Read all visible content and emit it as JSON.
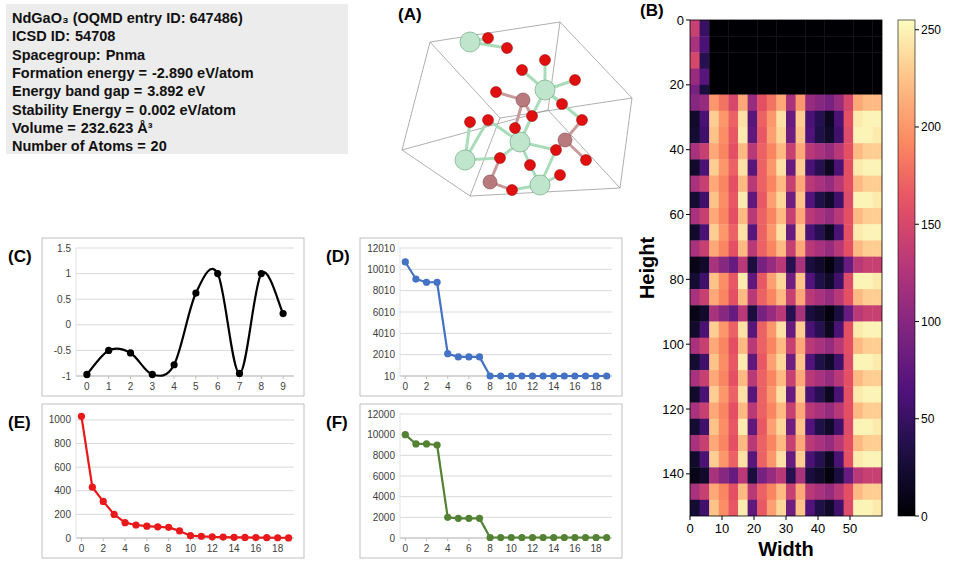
{
  "info": {
    "title": "NdGaO₃ (OQMD entry ID: 647486)",
    "rows": [
      {
        "label": "ICSD ID:",
        "value": "54708"
      },
      {
        "label": "Spacegroup:",
        "value": "Pnma"
      },
      {
        "label": "Formation energy =",
        "value": "-2.890 eV/atom"
      },
      {
        "label": "Energy band gap =",
        "value": "3.892 eV"
      },
      {
        "label": "Stability Energy =",
        "value": "0.002 eV/atom"
      },
      {
        "label": "Volume =",
        "value": "232.623 Å³"
      },
      {
        "label": "Number of Atoms =",
        "value": "20"
      }
    ]
  },
  "structure": {
    "panel_label": "(A)"
  },
  "chart_data": [
    {
      "type": "heatmap",
      "panel_label": "(B)",
      "x_label": "Width",
      "y_label": "Height",
      "xlim": [
        0,
        60
      ],
      "ylim": [
        0,
        153
      ],
      "xticks": [
        0,
        10,
        20,
        30,
        40,
        50
      ],
      "yticks": [
        0,
        20,
        40,
        60,
        80,
        100,
        120,
        140
      ],
      "x_edges": [
        0,
        3,
        6,
        9,
        12,
        15,
        18,
        21,
        24,
        27,
        30,
        33,
        36,
        39,
        42,
        45,
        48,
        51,
        54,
        57,
        60
      ],
      "y_edges": [
        0,
        5,
        10,
        15,
        20,
        23,
        28,
        33,
        38,
        43,
        48,
        53,
        58,
        63,
        68,
        73,
        78,
        83,
        88,
        93,
        98,
        103,
        108,
        113,
        118,
        123,
        128,
        133,
        138,
        143,
        148,
        153
      ],
      "cells": [
        [
          140,
          50,
          0,
          0,
          0,
          0,
          0,
          0,
          0,
          0,
          0,
          0,
          0,
          0,
          0,
          0,
          0,
          0,
          0,
          0
        ],
        [
          120,
          60,
          0,
          0,
          0,
          0,
          0,
          0,
          0,
          0,
          0,
          0,
          0,
          0,
          0,
          0,
          0,
          0,
          0,
          0
        ],
        [
          150,
          40,
          0,
          0,
          0,
          0,
          0,
          0,
          0,
          0,
          0,
          0,
          0,
          0,
          0,
          0,
          0,
          0,
          0,
          0
        ],
        [
          110,
          70,
          0,
          0,
          0,
          0,
          0,
          0,
          0,
          0,
          0,
          0,
          0,
          0,
          0,
          0,
          0,
          0,
          0,
          0
        ],
        [
          90,
          30,
          0,
          0,
          0,
          0,
          0,
          0,
          0,
          0,
          0,
          0,
          0,
          0,
          0,
          0,
          0,
          0,
          0,
          0
        ],
        [
          100,
          110,
          200,
          180,
          150,
          210,
          110,
          160,
          180,
          210,
          120,
          200,
          110,
          100,
          90,
          110,
          150,
          210,
          220,
          220
        ],
        [
          20,
          60,
          230,
          200,
          170,
          240,
          70,
          170,
          200,
          240,
          80,
          230,
          60,
          40,
          15,
          60,
          160,
          245,
          250,
          250
        ],
        [
          25,
          55,
          225,
          195,
          165,
          245,
          75,
          165,
          205,
          235,
          85,
          225,
          65,
          35,
          20,
          55,
          155,
          250,
          250,
          245
        ],
        [
          120,
          140,
          210,
          190,
          160,
          220,
          130,
          170,
          190,
          220,
          140,
          210,
          130,
          120,
          110,
          130,
          160,
          220,
          230,
          230
        ],
        [
          20,
          60,
          230,
          200,
          170,
          240,
          70,
          170,
          200,
          240,
          80,
          230,
          60,
          40,
          15,
          60,
          160,
          245,
          250,
          250
        ],
        [
          120,
          140,
          210,
          190,
          160,
          220,
          130,
          170,
          190,
          220,
          140,
          210,
          130,
          120,
          110,
          130,
          160,
          220,
          230,
          230
        ],
        [
          25,
          55,
          225,
          195,
          165,
          245,
          75,
          165,
          205,
          235,
          85,
          225,
          65,
          35,
          20,
          55,
          155,
          250,
          250,
          245
        ],
        [
          120,
          140,
          210,
          190,
          160,
          220,
          130,
          170,
          190,
          220,
          140,
          210,
          130,
          120,
          110,
          130,
          160,
          220,
          230,
          230
        ],
        [
          20,
          60,
          230,
          200,
          170,
          240,
          70,
          170,
          200,
          240,
          80,
          230,
          60,
          40,
          15,
          60,
          160,
          245,
          250,
          250
        ],
        [
          120,
          140,
          210,
          190,
          160,
          220,
          130,
          170,
          190,
          220,
          140,
          210,
          130,
          120,
          110,
          130,
          160,
          220,
          230,
          230
        ],
        [
          10,
          20,
          120,
          100,
          80,
          130,
          30,
          90,
          110,
          130,
          40,
          120,
          30,
          20,
          5,
          30,
          80,
          130,
          140,
          140
        ],
        [
          25,
          55,
          225,
          195,
          165,
          245,
          75,
          165,
          205,
          235,
          85,
          225,
          65,
          35,
          20,
          55,
          155,
          250,
          250,
          245
        ],
        [
          120,
          140,
          210,
          190,
          160,
          220,
          130,
          170,
          190,
          220,
          140,
          210,
          130,
          120,
          110,
          130,
          160,
          220,
          230,
          230
        ],
        [
          10,
          20,
          120,
          100,
          80,
          130,
          30,
          90,
          110,
          130,
          40,
          120,
          30,
          20,
          5,
          30,
          80,
          130,
          140,
          140
        ],
        [
          20,
          60,
          230,
          200,
          170,
          240,
          70,
          170,
          200,
          240,
          80,
          230,
          60,
          40,
          15,
          60,
          160,
          245,
          250,
          250
        ],
        [
          120,
          140,
          210,
          190,
          160,
          220,
          130,
          170,
          190,
          220,
          140,
          210,
          130,
          120,
          110,
          130,
          160,
          220,
          230,
          230
        ],
        [
          25,
          55,
          225,
          195,
          165,
          245,
          75,
          165,
          205,
          235,
          85,
          225,
          65,
          35,
          20,
          55,
          155,
          250,
          250,
          245
        ],
        [
          120,
          140,
          210,
          190,
          160,
          220,
          130,
          170,
          190,
          220,
          140,
          210,
          130,
          120,
          110,
          130,
          160,
          220,
          230,
          230
        ],
        [
          20,
          60,
          230,
          200,
          170,
          240,
          70,
          170,
          200,
          240,
          80,
          230,
          60,
          40,
          15,
          60,
          160,
          245,
          250,
          250
        ],
        [
          120,
          140,
          210,
          190,
          160,
          220,
          130,
          170,
          190,
          220,
          140,
          210,
          130,
          120,
          110,
          130,
          160,
          220,
          230,
          230
        ],
        [
          25,
          55,
          225,
          195,
          165,
          245,
          75,
          165,
          205,
          235,
          85,
          225,
          65,
          35,
          20,
          55,
          155,
          250,
          250,
          245
        ],
        [
          120,
          140,
          210,
          190,
          160,
          220,
          130,
          170,
          190,
          220,
          140,
          210,
          130,
          120,
          110,
          130,
          160,
          220,
          230,
          230
        ],
        [
          20,
          60,
          230,
          200,
          170,
          240,
          70,
          170,
          200,
          240,
          80,
          230,
          60,
          40,
          15,
          60,
          160,
          245,
          250,
          250
        ],
        [
          10,
          20,
          120,
          100,
          80,
          130,
          30,
          90,
          110,
          130,
          40,
          120,
          30,
          20,
          5,
          30,
          80,
          130,
          140,
          140
        ],
        [
          120,
          140,
          210,
          190,
          160,
          220,
          130,
          170,
          190,
          220,
          140,
          210,
          130,
          120,
          110,
          130,
          160,
          220,
          230,
          230
        ],
        [
          25,
          55,
          225,
          195,
          165,
          245,
          75,
          165,
          205,
          235,
          85,
          225,
          65,
          35,
          20,
          55,
          155,
          250,
          250,
          245
        ]
      ],
      "colorbar": {
        "lim": [
          0,
          255
        ],
        "ticks": [
          0,
          50,
          100,
          150,
          200,
          250
        ]
      }
    },
    {
      "type": "line",
      "panel_label": "(C)",
      "x": [
        0,
        1,
        2,
        3,
        4,
        5,
        6,
        7,
        8,
        9
      ],
      "values": [
        -0.97,
        -0.5,
        -0.55,
        -0.97,
        -0.78,
        0.62,
        1.0,
        -0.95,
        1.0,
        0.22
      ],
      "color": "#000000",
      "marker": "circle",
      "line_style": "smooth",
      "xlim": [
        -0.5,
        9.5
      ],
      "ylim": [
        -1,
        1.5
      ],
      "xticks": [
        0,
        1,
        2,
        3,
        4,
        5,
        6,
        7,
        8,
        9
      ],
      "yticks": [
        -1,
        -0.5,
        0,
        0.5,
        1,
        1.5
      ],
      "grid": true
    },
    {
      "type": "line",
      "panel_label": "(D)",
      "x": [
        0,
        1,
        2,
        3,
        4,
        5,
        6,
        7,
        8,
        9,
        10,
        11,
        12,
        13,
        14,
        15,
        16,
        17,
        18,
        19
      ],
      "values": [
        10700,
        9100,
        8800,
        8800,
        2100,
        1800,
        1800,
        1800,
        10,
        10,
        10,
        10,
        10,
        10,
        10,
        10,
        10,
        10,
        10,
        10
      ],
      "color": "#4472c4",
      "marker": "circle",
      "line_style": "solid",
      "xlim": [
        -0.5,
        19.5
      ],
      "ylim": [
        10,
        12010
      ],
      "xticks": [
        0,
        2,
        4,
        6,
        8,
        10,
        12,
        14,
        16,
        18
      ],
      "yticks": [
        10,
        2010,
        4010,
        6010,
        8010,
        10010,
        12010
      ],
      "grid": true
    },
    {
      "type": "line",
      "panel_label": "(E)",
      "x": [
        0,
        1,
        2,
        3,
        4,
        5,
        6,
        7,
        8,
        9,
        10,
        11,
        12,
        13,
        14,
        15,
        16,
        17,
        18,
        19
      ],
      "values": [
        1030,
        430,
        310,
        200,
        130,
        110,
        100,
        95,
        90,
        60,
        20,
        15,
        10,
        8,
        6,
        5,
        4,
        3,
        2,
        1
      ],
      "color": "#e8191b",
      "marker": "circle",
      "line_style": "solid",
      "xlim": [
        -0.5,
        19.5
      ],
      "ylim": [
        0,
        1050
      ],
      "xticks": [
        0,
        2,
        4,
        6,
        8,
        10,
        12,
        14,
        16,
        18
      ],
      "yticks": [
        0,
        200,
        400,
        600,
        800,
        1000
      ],
      "grid": true
    },
    {
      "type": "line",
      "panel_label": "(F)",
      "x": [
        0,
        1,
        2,
        3,
        4,
        5,
        6,
        7,
        8,
        9,
        10,
        11,
        12,
        13,
        14,
        15,
        16,
        17,
        18,
        19
      ],
      "values": [
        10000,
        9100,
        9100,
        9000,
        2000,
        1900,
        1900,
        1900,
        50,
        50,
        50,
        50,
        50,
        50,
        50,
        50,
        50,
        50,
        50,
        50
      ],
      "color": "#548235",
      "marker": "circle",
      "line_style": "solid",
      "xlim": [
        -0.5,
        19.5
      ],
      "ylim": [
        0,
        12000
      ],
      "xticks": [
        0,
        2,
        4,
        6,
        8,
        10,
        12,
        14,
        16,
        18
      ],
      "yticks": [
        0,
        2000,
        4000,
        6000,
        8000,
        10000,
        12000
      ],
      "grid": true
    }
  ]
}
